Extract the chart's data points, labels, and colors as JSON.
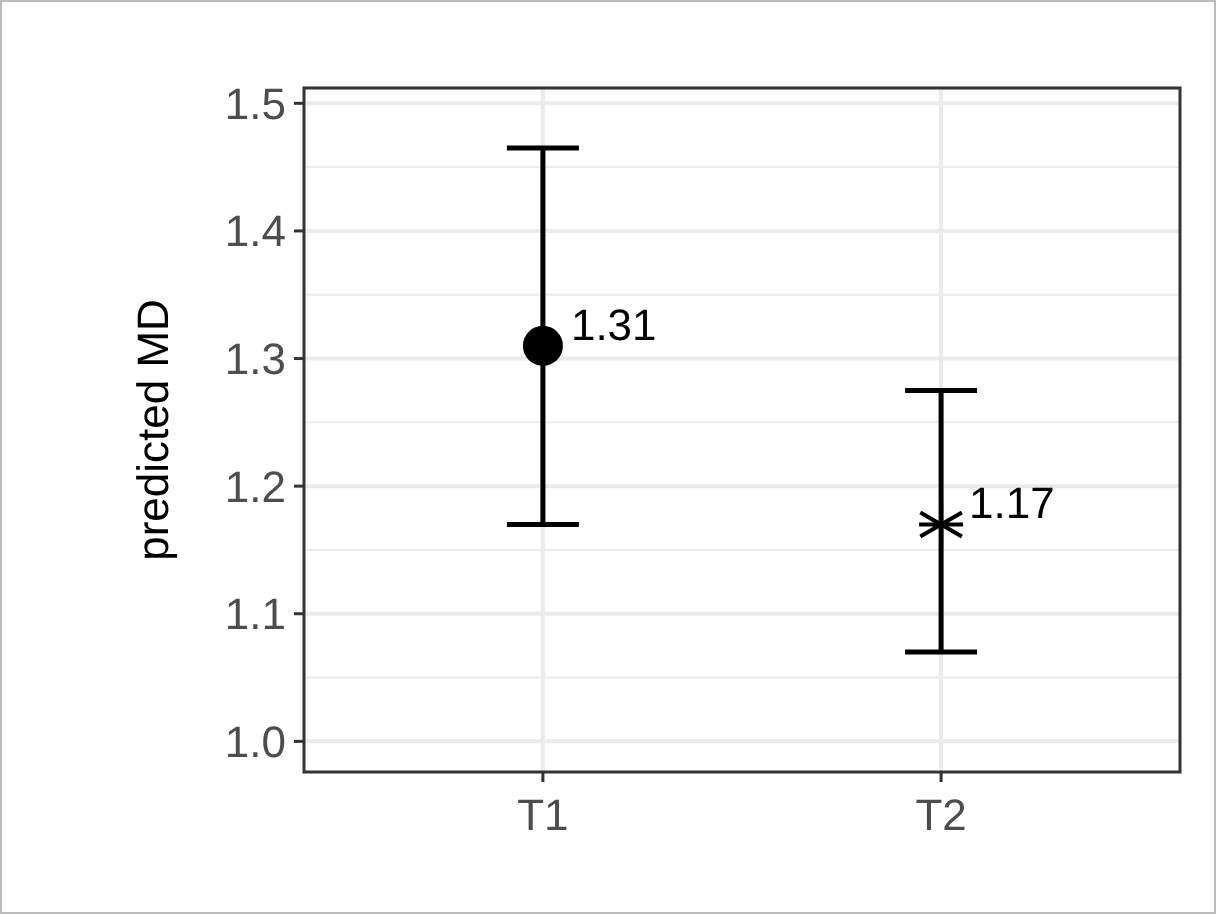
{
  "chart_data": {
    "type": "scatter",
    "ylabel": "predicted MD",
    "categories": [
      "T1",
      "T2"
    ],
    "ylim": [
      0.976,
      1.512
    ],
    "yticks": [
      {
        "value": 1,
        "label": "1.0"
      },
      {
        "value": 1.05,
        "label": null
      },
      {
        "value": 1.1,
        "label": "1.1"
      },
      {
        "value": 1.15,
        "label": null
      },
      {
        "value": 1.2,
        "label": "1.2"
      },
      {
        "value": 1.25,
        "label": null
      },
      {
        "value": 1.3,
        "label": "1.3"
      },
      {
        "value": 1.35,
        "label": null
      },
      {
        "value": 1.4,
        "label": "1.4"
      },
      {
        "value": 1.45,
        "label": null
      },
      {
        "value": 1.5,
        "label": "1.5"
      }
    ],
    "grid": true,
    "data_labels": true,
    "series": [
      {
        "color": "#000000",
        "marker": "circle",
        "values": [
          1.31,
          null
        ],
        "errors": [
          [
            1.17,
            1.465
          ],
          null
        ]
      },
      {
        "color": "#000000",
        "marker": "cross",
        "values": [
          null,
          1.17
        ],
        "errors": [
          null,
          [
            1.07,
            1.275
          ]
        ]
      }
    ]
  }
}
